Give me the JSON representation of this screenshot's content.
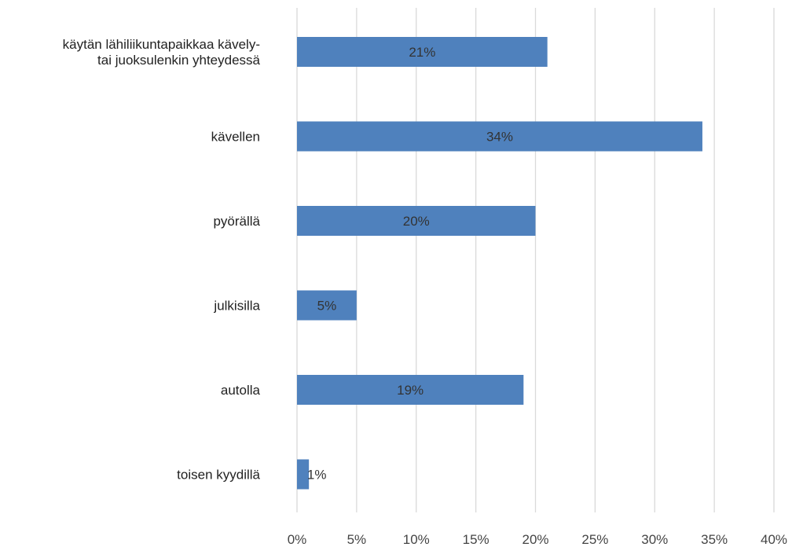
{
  "chart_data": {
    "type": "bar",
    "orientation": "horizontal",
    "categories": [
      [
        "käytän lähiliikuntapaikkaa kävely-",
        "tai juoksulenkin yhteydessä"
      ],
      [
        "kävellen"
      ],
      [
        "pyörällä"
      ],
      [
        "julkisilla"
      ],
      [
        "autolla"
      ],
      [
        "toisen kyydillä"
      ]
    ],
    "values": [
      21,
      34,
      20,
      5,
      19,
      1
    ],
    "data_labels": [
      "21%",
      "34%",
      "20%",
      "5%",
      "19%",
      "1%"
    ],
    "xlim": [
      0,
      40
    ],
    "x_ticks": [
      0,
      5,
      10,
      15,
      20,
      25,
      30,
      35,
      40
    ],
    "x_tick_labels": [
      "0%",
      "5%",
      "10%",
      "15%",
      "20%",
      "25%",
      "30%",
      "35%",
      "40%"
    ],
    "title": "",
    "xlabel": "",
    "ylabel": "",
    "grid": "vertical",
    "legend": "none",
    "bar_color": "#4F81BD",
    "grid_color": "#D9D9D9"
  }
}
